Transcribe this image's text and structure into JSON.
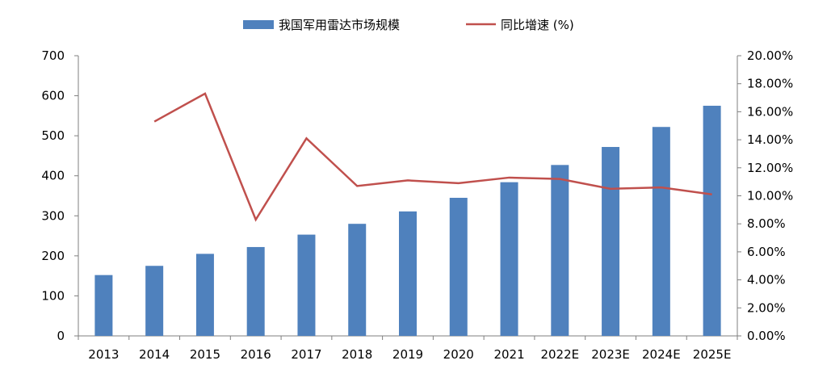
{
  "chart_data": {
    "type": "bar",
    "categories": [
      "2013",
      "2014",
      "2015",
      "2016",
      "2017",
      "2018",
      "2019",
      "2020",
      "2021",
      "2022E",
      "2023E",
      "2024E",
      "2025E"
    ],
    "series": [
      {
        "name": "我国军用雷达市场规模",
        "type": "bar",
        "axis": "left",
        "color": "#4f81bd",
        "values": [
          152,
          175,
          205,
          222,
          253,
          280,
          311,
          345,
          384,
          427,
          472,
          522,
          575
        ]
      },
      {
        "name": "同比增速 (%)",
        "type": "line",
        "axis": "right",
        "color": "#c0504d",
        "values": [
          null,
          15.3,
          17.3,
          8.3,
          14.1,
          10.7,
          11.1,
          10.9,
          11.3,
          11.2,
          10.5,
          10.6,
          10.1
        ]
      }
    ],
    "y_left": {
      "ylim": [
        0,
        700
      ],
      "ticks": [
        0,
        100,
        200,
        300,
        400,
        500,
        600,
        700
      ],
      "tick_labels": [
        "0",
        "100",
        "200",
        "300",
        "400",
        "500",
        "600",
        "700"
      ]
    },
    "y_right": {
      "ylim": [
        0,
        20
      ],
      "ticks": [
        0,
        2,
        4,
        6,
        8,
        10,
        12,
        14,
        16,
        18,
        20
      ],
      "tick_labels": [
        "0.00%",
        "2.00%",
        "4.00%",
        "6.00%",
        "8.00%",
        "10.00%",
        "12.00%",
        "14.00%",
        "16.00%",
        "18.00%",
        "20.00%"
      ]
    },
    "legend_position": "top",
    "grid": false
  }
}
